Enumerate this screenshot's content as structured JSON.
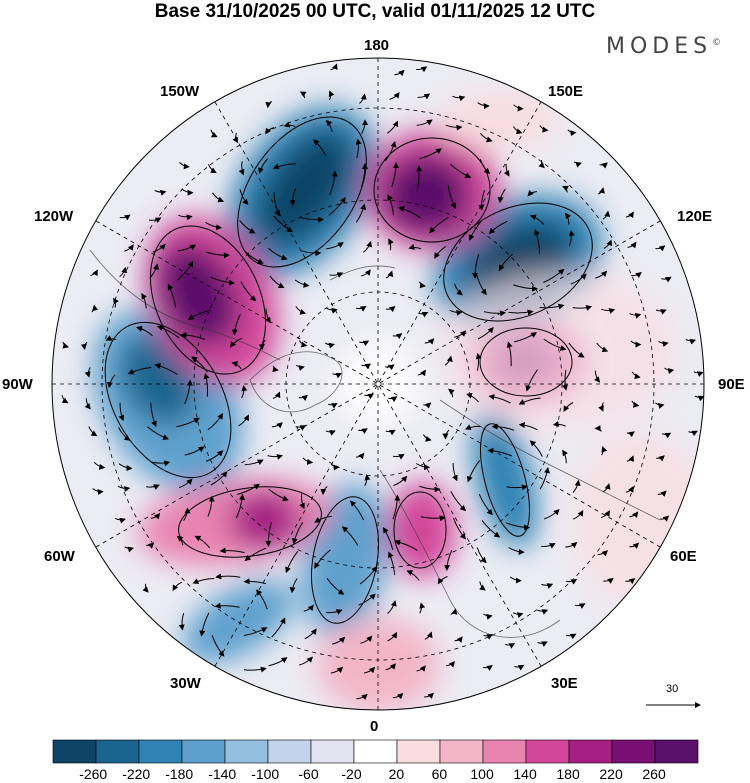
{
  "header": {
    "title": "Base 31/10/2025 00 UTC, valid 01/11/2025 12 UTC",
    "brand": "MODES",
    "brand_mark": "©"
  },
  "map": {
    "projection_labels": {
      "top": "180",
      "bottom": "0",
      "left": "90W",
      "right": "90E",
      "upper_left": "150W",
      "upper_right": "150E",
      "mid_upper_left": "120W",
      "mid_upper_right": "120E",
      "mid_lower_left": "60W",
      "mid_lower_right": "60E",
      "lower_left": "30W",
      "lower_right": "30E"
    },
    "vector_scale": {
      "label": "30"
    }
  },
  "colorbar": {
    "colors": [
      "#0e4566",
      "#19658f",
      "#2e82b4",
      "#5ea0cd",
      "#94bfde",
      "#c3d4ea",
      "#e3e3f2",
      "#ffffff",
      "#f8dde1",
      "#f3b6c8",
      "#e983b0",
      "#d2479a",
      "#a51f85",
      "#7a0f73",
      "#5a0f6a"
    ],
    "labels": [
      "-260",
      "-220",
      "-180",
      "-140",
      "-100",
      "-60",
      "-20",
      "20",
      "60",
      "100",
      "140",
      "180",
      "220",
      "260"
    ]
  }
}
